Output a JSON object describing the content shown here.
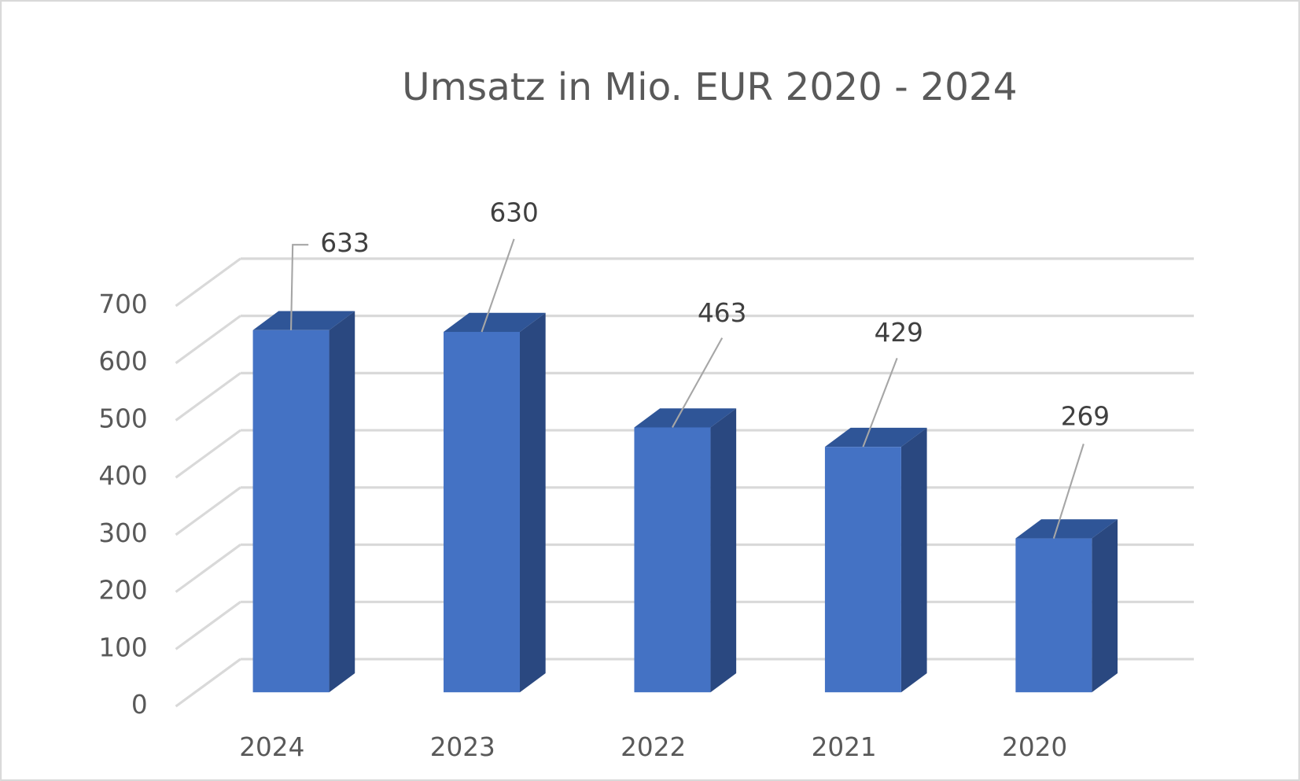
{
  "chart_data": {
    "type": "bar3d",
    "title": "Umsatz in Mio. EUR 2020 - 2024",
    "categories": [
      "2024",
      "2023",
      "2022",
      "2021",
      "2020"
    ],
    "values": [
      633,
      630,
      463,
      429,
      269
    ],
    "color": "#4472c4",
    "ylim": [
      0,
      700
    ],
    "yticks": [
      0,
      100,
      200,
      300,
      400,
      500,
      600,
      700
    ],
    "grid": true
  }
}
